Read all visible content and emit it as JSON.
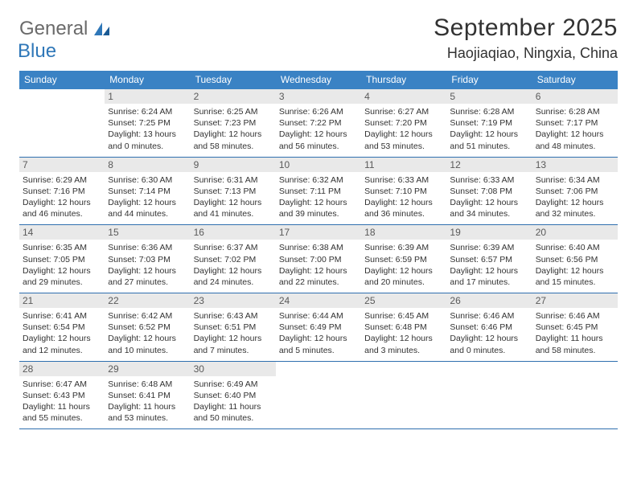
{
  "logo": {
    "word1": "General",
    "word2": "Blue"
  },
  "title": "September 2025",
  "location": "Haojiaqiao, Ningxia, China",
  "colors": {
    "header_bg": "#3a82c4",
    "header_text": "#ffffff",
    "band_bg": "#e9e9e9",
    "band_text": "#5a5a5a",
    "rule": "#2f6faf",
    "logo_gray": "#6a6a6a",
    "logo_blue": "#2f77b8",
    "body_text": "#323232"
  },
  "fonts": {
    "title_size_pt": 22,
    "location_size_pt": 13,
    "weekday_size_pt": 9,
    "daynum_size_pt": 9,
    "body_size_pt": 8
  },
  "weekdays": [
    "Sunday",
    "Monday",
    "Tuesday",
    "Wednesday",
    "Thursday",
    "Friday",
    "Saturday"
  ],
  "weeks": [
    [
      {
        "blank": true
      },
      {
        "n": "1",
        "sr": "Sunrise: 6:24 AM",
        "ss": "Sunset: 7:25 PM",
        "d1": "Daylight: 13 hours",
        "d2": "and 0 minutes."
      },
      {
        "n": "2",
        "sr": "Sunrise: 6:25 AM",
        "ss": "Sunset: 7:23 PM",
        "d1": "Daylight: 12 hours",
        "d2": "and 58 minutes."
      },
      {
        "n": "3",
        "sr": "Sunrise: 6:26 AM",
        "ss": "Sunset: 7:22 PM",
        "d1": "Daylight: 12 hours",
        "d2": "and 56 minutes."
      },
      {
        "n": "4",
        "sr": "Sunrise: 6:27 AM",
        "ss": "Sunset: 7:20 PM",
        "d1": "Daylight: 12 hours",
        "d2": "and 53 minutes."
      },
      {
        "n": "5",
        "sr": "Sunrise: 6:28 AM",
        "ss": "Sunset: 7:19 PM",
        "d1": "Daylight: 12 hours",
        "d2": "and 51 minutes."
      },
      {
        "n": "6",
        "sr": "Sunrise: 6:28 AM",
        "ss": "Sunset: 7:17 PM",
        "d1": "Daylight: 12 hours",
        "d2": "and 48 minutes."
      }
    ],
    [
      {
        "n": "7",
        "sr": "Sunrise: 6:29 AM",
        "ss": "Sunset: 7:16 PM",
        "d1": "Daylight: 12 hours",
        "d2": "and 46 minutes."
      },
      {
        "n": "8",
        "sr": "Sunrise: 6:30 AM",
        "ss": "Sunset: 7:14 PM",
        "d1": "Daylight: 12 hours",
        "d2": "and 44 minutes."
      },
      {
        "n": "9",
        "sr": "Sunrise: 6:31 AM",
        "ss": "Sunset: 7:13 PM",
        "d1": "Daylight: 12 hours",
        "d2": "and 41 minutes."
      },
      {
        "n": "10",
        "sr": "Sunrise: 6:32 AM",
        "ss": "Sunset: 7:11 PM",
        "d1": "Daylight: 12 hours",
        "d2": "and 39 minutes."
      },
      {
        "n": "11",
        "sr": "Sunrise: 6:33 AM",
        "ss": "Sunset: 7:10 PM",
        "d1": "Daylight: 12 hours",
        "d2": "and 36 minutes."
      },
      {
        "n": "12",
        "sr": "Sunrise: 6:33 AM",
        "ss": "Sunset: 7:08 PM",
        "d1": "Daylight: 12 hours",
        "d2": "and 34 minutes."
      },
      {
        "n": "13",
        "sr": "Sunrise: 6:34 AM",
        "ss": "Sunset: 7:06 PM",
        "d1": "Daylight: 12 hours",
        "d2": "and 32 minutes."
      }
    ],
    [
      {
        "n": "14",
        "sr": "Sunrise: 6:35 AM",
        "ss": "Sunset: 7:05 PM",
        "d1": "Daylight: 12 hours",
        "d2": "and 29 minutes."
      },
      {
        "n": "15",
        "sr": "Sunrise: 6:36 AM",
        "ss": "Sunset: 7:03 PM",
        "d1": "Daylight: 12 hours",
        "d2": "and 27 minutes."
      },
      {
        "n": "16",
        "sr": "Sunrise: 6:37 AM",
        "ss": "Sunset: 7:02 PM",
        "d1": "Daylight: 12 hours",
        "d2": "and 24 minutes."
      },
      {
        "n": "17",
        "sr": "Sunrise: 6:38 AM",
        "ss": "Sunset: 7:00 PM",
        "d1": "Daylight: 12 hours",
        "d2": "and 22 minutes."
      },
      {
        "n": "18",
        "sr": "Sunrise: 6:39 AM",
        "ss": "Sunset: 6:59 PM",
        "d1": "Daylight: 12 hours",
        "d2": "and 20 minutes."
      },
      {
        "n": "19",
        "sr": "Sunrise: 6:39 AM",
        "ss": "Sunset: 6:57 PM",
        "d1": "Daylight: 12 hours",
        "d2": "and 17 minutes."
      },
      {
        "n": "20",
        "sr": "Sunrise: 6:40 AM",
        "ss": "Sunset: 6:56 PM",
        "d1": "Daylight: 12 hours",
        "d2": "and 15 minutes."
      }
    ],
    [
      {
        "n": "21",
        "sr": "Sunrise: 6:41 AM",
        "ss": "Sunset: 6:54 PM",
        "d1": "Daylight: 12 hours",
        "d2": "and 12 minutes."
      },
      {
        "n": "22",
        "sr": "Sunrise: 6:42 AM",
        "ss": "Sunset: 6:52 PM",
        "d1": "Daylight: 12 hours",
        "d2": "and 10 minutes."
      },
      {
        "n": "23",
        "sr": "Sunrise: 6:43 AM",
        "ss": "Sunset: 6:51 PM",
        "d1": "Daylight: 12 hours",
        "d2": "and 7 minutes."
      },
      {
        "n": "24",
        "sr": "Sunrise: 6:44 AM",
        "ss": "Sunset: 6:49 PM",
        "d1": "Daylight: 12 hours",
        "d2": "and 5 minutes."
      },
      {
        "n": "25",
        "sr": "Sunrise: 6:45 AM",
        "ss": "Sunset: 6:48 PM",
        "d1": "Daylight: 12 hours",
        "d2": "and 3 minutes."
      },
      {
        "n": "26",
        "sr": "Sunrise: 6:46 AM",
        "ss": "Sunset: 6:46 PM",
        "d1": "Daylight: 12 hours",
        "d2": "and 0 minutes."
      },
      {
        "n": "27",
        "sr": "Sunrise: 6:46 AM",
        "ss": "Sunset: 6:45 PM",
        "d1": "Daylight: 11 hours",
        "d2": "and 58 minutes."
      }
    ],
    [
      {
        "n": "28",
        "sr": "Sunrise: 6:47 AM",
        "ss": "Sunset: 6:43 PM",
        "d1": "Daylight: 11 hours",
        "d2": "and 55 minutes."
      },
      {
        "n": "29",
        "sr": "Sunrise: 6:48 AM",
        "ss": "Sunset: 6:41 PM",
        "d1": "Daylight: 11 hours",
        "d2": "and 53 minutes."
      },
      {
        "n": "30",
        "sr": "Sunrise: 6:49 AM",
        "ss": "Sunset: 6:40 PM",
        "d1": "Daylight: 11 hours",
        "d2": "and 50 minutes."
      },
      {
        "blank": true
      },
      {
        "blank": true
      },
      {
        "blank": true
      },
      {
        "blank": true
      }
    ]
  ]
}
